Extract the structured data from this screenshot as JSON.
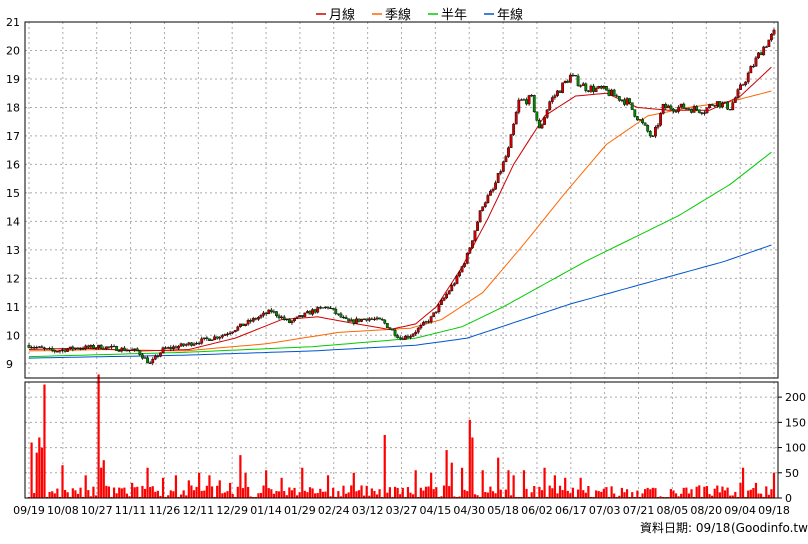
{
  "chart_data": {
    "type": "candlestick",
    "legend": [
      {
        "name": "月線",
        "color": "#cc0000"
      },
      {
        "name": "季線",
        "color": "#ff6600"
      },
      {
        "name": "半年",
        "color": "#00cc00"
      },
      {
        "name": "年線",
        "color": "#0055cc"
      }
    ],
    "price_axis": {
      "ylim": [
        8.5,
        21
      ],
      "ticks": [
        9,
        10,
        11,
        12,
        13,
        14,
        15,
        16,
        17,
        18,
        19,
        20,
        21
      ]
    },
    "volume_axis": {
      "ylim": [
        0,
        230
      ],
      "ticks": [
        0,
        50,
        100,
        150,
        200
      ]
    },
    "x_tick_labels": [
      "09/19",
      "10/08",
      "10/27",
      "11/11",
      "11/26",
      "12/11",
      "12/29",
      "01/14",
      "01/29",
      "02/24",
      "03/12",
      "03/27",
      "04/15",
      "04/30",
      "05/18",
      "06/02",
      "06/17",
      "07/03",
      "07/21",
      "08/05",
      "08/20",
      "09/04",
      "09/18"
    ],
    "price_anchors": [
      [
        0,
        9.65
      ],
      [
        6,
        9.5
      ],
      [
        10,
        9.45
      ],
      [
        18,
        9.55
      ],
      [
        28,
        9.6
      ],
      [
        42,
        9.45
      ],
      [
        47,
        9.0
      ],
      [
        52,
        9.5
      ],
      [
        60,
        9.65
      ],
      [
        75,
        10.0
      ],
      [
        86,
        10.5
      ],
      [
        94,
        10.85
      ],
      [
        101,
        10.45
      ],
      [
        110,
        10.85
      ],
      [
        116,
        11.0
      ],
      [
        120,
        10.7
      ],
      [
        124,
        10.45
      ],
      [
        131,
        10.6
      ],
      [
        137,
        10.5
      ],
      [
        144,
        9.9
      ],
      [
        148,
        10.0
      ],
      [
        156,
        10.6
      ],
      [
        166,
        12.0
      ],
      [
        170,
        12.8
      ],
      [
        176,
        14.6
      ],
      [
        180,
        15.1
      ],
      [
        186,
        16.5
      ],
      [
        190,
        18.2
      ],
      [
        195,
        18.3
      ],
      [
        198,
        17.2
      ],
      [
        202,
        18.2
      ],
      [
        210,
        19.1
      ],
      [
        216,
        18.7
      ],
      [
        223,
        18.6
      ],
      [
        232,
        18.2
      ],
      [
        238,
        17.4
      ],
      [
        242,
        16.9
      ],
      [
        246,
        18.0
      ],
      [
        254,
        18.0
      ],
      [
        262,
        17.9
      ],
      [
        266,
        18.2
      ],
      [
        272,
        18.0
      ],
      [
        278,
        19.0
      ],
      [
        284,
        20.0
      ],
      [
        289,
        20.6
      ]
    ],
    "ma_月線": [
      [
        0,
        9.5
      ],
      [
        20,
        9.55
      ],
      [
        44,
        9.45
      ],
      [
        62,
        9.5
      ],
      [
        80,
        9.9
      ],
      [
        98,
        10.55
      ],
      [
        112,
        10.65
      ],
      [
        124,
        10.45
      ],
      [
        140,
        10.2
      ],
      [
        150,
        10.4
      ],
      [
        158,
        11.0
      ],
      [
        168,
        12.4
      ],
      [
        178,
        14.1
      ],
      [
        188,
        16.0
      ],
      [
        200,
        17.7
      ],
      [
        212,
        18.4
      ],
      [
        224,
        18.5
      ],
      [
        236,
        18.0
      ],
      [
        248,
        17.9
      ],
      [
        264,
        17.9
      ],
      [
        276,
        18.4
      ],
      [
        289,
        19.5
      ]
    ],
    "ma_季線": [
      [
        0,
        9.45
      ],
      [
        30,
        9.5
      ],
      [
        60,
        9.45
      ],
      [
        92,
        9.7
      ],
      [
        120,
        10.1
      ],
      [
        148,
        10.25
      ],
      [
        160,
        10.55
      ],
      [
        176,
        11.5
      ],
      [
        192,
        13.2
      ],
      [
        208,
        15.0
      ],
      [
        224,
        16.7
      ],
      [
        240,
        17.7
      ],
      [
        256,
        18.0
      ],
      [
        272,
        18.2
      ],
      [
        289,
        18.6
      ]
    ],
    "ma_半年": [
      [
        0,
        9.25
      ],
      [
        60,
        9.4
      ],
      [
        110,
        9.6
      ],
      [
        150,
        9.9
      ],
      [
        168,
        10.3
      ],
      [
        184,
        11.0
      ],
      [
        200,
        11.8
      ],
      [
        216,
        12.6
      ],
      [
        234,
        13.4
      ],
      [
        252,
        14.2
      ],
      [
        272,
        15.3
      ],
      [
        289,
        16.5
      ]
    ],
    "ma_年線": [
      [
        0,
        9.2
      ],
      [
        60,
        9.3
      ],
      [
        110,
        9.45
      ],
      [
        150,
        9.65
      ],
      [
        170,
        9.9
      ],
      [
        190,
        10.5
      ],
      [
        210,
        11.1
      ],
      [
        230,
        11.6
      ],
      [
        250,
        12.1
      ],
      [
        270,
        12.6
      ],
      [
        289,
        13.2
      ]
    ],
    "volume_spikes": [
      [
        1,
        110
      ],
      [
        3,
        90
      ],
      [
        4,
        120
      ],
      [
        5,
        100
      ],
      [
        6,
        225
      ],
      [
        13,
        65
      ],
      [
        22,
        45
      ],
      [
        27,
        245
      ],
      [
        28,
        60
      ],
      [
        29,
        75
      ],
      [
        40,
        30
      ],
      [
        46,
        60
      ],
      [
        52,
        40
      ],
      [
        57,
        45
      ],
      [
        62,
        35
      ],
      [
        66,
        50
      ],
      [
        70,
        45
      ],
      [
        74,
        35
      ],
      [
        78,
        30
      ],
      [
        82,
        85
      ],
      [
        84,
        50
      ],
      [
        92,
        55
      ],
      [
        98,
        40
      ],
      [
        106,
        60
      ],
      [
        116,
        45
      ],
      [
        126,
        50
      ],
      [
        138,
        125
      ],
      [
        150,
        55
      ],
      [
        156,
        50
      ],
      [
        162,
        95
      ],
      [
        164,
        70
      ],
      [
        168,
        60
      ],
      [
        171,
        155
      ],
      [
        172,
        120
      ],
      [
        176,
        55
      ],
      [
        182,
        80
      ],
      [
        186,
        55
      ],
      [
        188,
        45
      ],
      [
        192,
        55
      ],
      [
        200,
        60
      ],
      [
        204,
        45
      ],
      [
        208,
        40
      ],
      [
        214,
        40
      ],
      [
        220,
        15
      ],
      [
        230,
        20
      ],
      [
        240,
        20
      ],
      [
        250,
        15
      ],
      [
        260,
        25
      ],
      [
        270,
        15
      ],
      [
        276,
        30
      ],
      [
        277,
        60
      ],
      [
        282,
        30
      ],
      [
        289,
        50
      ]
    ]
  },
  "footer": {
    "date_label": "資料日期: 09/18",
    "site": "(Goodinfo.tw)"
  }
}
